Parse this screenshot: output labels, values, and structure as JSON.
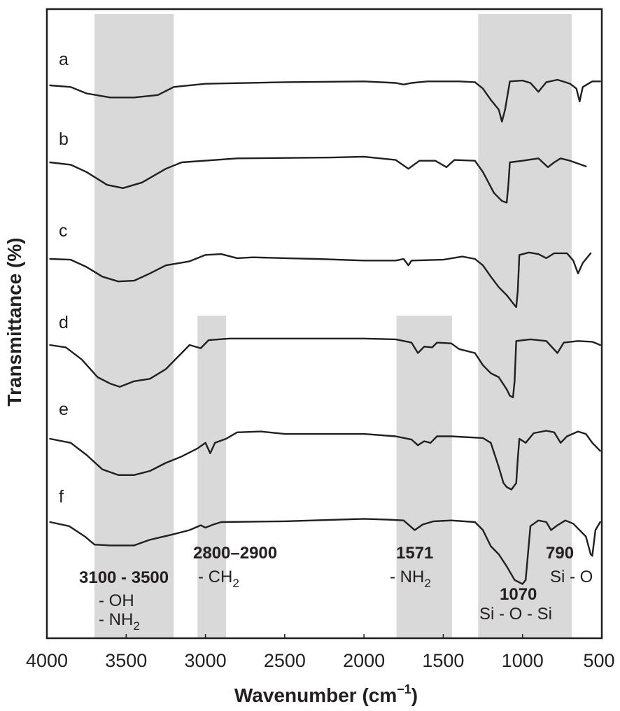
{
  "chart_data": {
    "type": "line",
    "title": "",
    "xlabel": "Wavenumber (cm⁻¹)",
    "xlabel_main": "Wavenumber (cm",
    "xlabel_sup": "−1",
    "xlabel_close": ")",
    "ylabel": "Transmittance (%)",
    "xlim": [
      4000,
      500
    ],
    "x_reversed": true,
    "y_ticks_shown": false,
    "grid": false,
    "x_ticks": [
      4000,
      3500,
      3000,
      2500,
      2000,
      1500,
      1000,
      500
    ],
    "x_tick_labels": [
      "4000",
      "3500",
      "3000",
      "2500",
      "2000",
      "1500",
      "1000",
      "500"
    ],
    "line_color": "#231f20",
    "band_color": "#d9d9d9",
    "bands": [
      {
        "name": "OH-NH2",
        "from": 3700,
        "to": 3200,
        "top_row": 0
      },
      {
        "name": "CH2",
        "from": 3050,
        "to": 2870,
        "top_row": 3
      },
      {
        "name": "NH2",
        "from": 1795,
        "to": 1445,
        "top_row": 3
      },
      {
        "name": "Si-O",
        "from": 1280,
        "to": 690,
        "top_row": 0
      }
    ],
    "annotations": [
      {
        "id": "oh",
        "bold": "3100 - 3500",
        "lines": [
          "- OH",
          "- NH₂"
        ]
      },
      {
        "id": "ch2",
        "bold": "2800–2900",
        "lines": [
          "- CH₂"
        ]
      },
      {
        "id": "nh2",
        "bold": "1571",
        "lines": [
          "- NH₂"
        ]
      },
      {
        "id": "sios",
        "bold": "1070",
        "lines": [
          "Si - O - Si"
        ]
      },
      {
        "id": "sio",
        "bold": "790",
        "lines": [
          "Si - O"
        ]
      }
    ],
    "annotation_text": {
      "oh_bold": "3100 - 3500",
      "oh_line1": "- OH",
      "oh_line2_main": "- NH",
      "oh_line2_sub": "2",
      "ch2_bold": "2800–2900",
      "ch2_main": "- CH",
      "ch2_sub": "2",
      "nh2_bold": "1571",
      "nh2_main": "- NH",
      "nh2_sub": "2",
      "sios_bold": "1070",
      "sios_line": "Si - O - Si",
      "sio_bold": "790",
      "sio_line": "Si - O"
    },
    "y_units_note": "relative transmittance offset; each trace stacked, values are relative dip depth (0 = baseline, negative = absorption, arbitrary units)",
    "series": [
      {
        "name": "a",
        "points": [
          [
            3980,
            0
          ],
          [
            3850,
            -2
          ],
          [
            3750,
            -10
          ],
          [
            3600,
            -15
          ],
          [
            3450,
            -15
          ],
          [
            3300,
            -12
          ],
          [
            3200,
            -2
          ],
          [
            3000,
            2
          ],
          [
            2500,
            4
          ],
          [
            2000,
            5
          ],
          [
            1800,
            3
          ],
          [
            1750,
            1
          ],
          [
            1700,
            3
          ],
          [
            1600,
            5
          ],
          [
            1400,
            5
          ],
          [
            1300,
            4
          ],
          [
            1250,
            -4
          ],
          [
            1200,
            -18
          ],
          [
            1150,
            -30
          ],
          [
            1130,
            -45
          ],
          [
            1110,
            -30
          ],
          [
            1080,
            5
          ],
          [
            1000,
            6
          ],
          [
            950,
            3
          ],
          [
            900,
            -8
          ],
          [
            850,
            4
          ],
          [
            780,
            7
          ],
          [
            730,
            4
          ],
          [
            700,
            2
          ],
          [
            660,
            -4
          ],
          [
            640,
            -20
          ],
          [
            620,
            -2
          ],
          [
            560,
            5
          ],
          [
            510,
            5
          ]
        ]
      },
      {
        "name": "b",
        "points": [
          [
            3980,
            0
          ],
          [
            3850,
            -3
          ],
          [
            3750,
            -12
          ],
          [
            3620,
            -28
          ],
          [
            3520,
            -32
          ],
          [
            3400,
            -25
          ],
          [
            3250,
            -8
          ],
          [
            3150,
            0
          ],
          [
            2800,
            5
          ],
          [
            2200,
            6
          ],
          [
            2000,
            7
          ],
          [
            1800,
            3
          ],
          [
            1720,
            -8
          ],
          [
            1650,
            2
          ],
          [
            1550,
            2
          ],
          [
            1480,
            -6
          ],
          [
            1430,
            3
          ],
          [
            1300,
            2
          ],
          [
            1250,
            -12
          ],
          [
            1180,
            -38
          ],
          [
            1130,
            -48
          ],
          [
            1100,
            -50
          ],
          [
            1090,
            -30
          ],
          [
            1080,
            0
          ],
          [
            1000,
            2
          ],
          [
            900,
            5
          ],
          [
            840,
            -6
          ],
          [
            800,
            0
          ],
          [
            760,
            5
          ],
          [
            700,
            2
          ],
          [
            600,
            -5
          ]
        ]
      },
      {
        "name": "c",
        "points": [
          [
            3980,
            0
          ],
          [
            3850,
            -1
          ],
          [
            3750,
            -10
          ],
          [
            3650,
            -22
          ],
          [
            3550,
            -28
          ],
          [
            3450,
            -27
          ],
          [
            3350,
            -18
          ],
          [
            3250,
            -8
          ],
          [
            3100,
            -3
          ],
          [
            3000,
            5
          ],
          [
            2900,
            6
          ],
          [
            2800,
            1
          ],
          [
            2700,
            2
          ],
          [
            2500,
            1
          ],
          [
            2300,
            0
          ],
          [
            2000,
            -2
          ],
          [
            1800,
            -2
          ],
          [
            1750,
            0
          ],
          [
            1720,
            -8
          ],
          [
            1700,
            -2
          ],
          [
            1500,
            -1
          ],
          [
            1380,
            3
          ],
          [
            1300,
            0
          ],
          [
            1250,
            -8
          ],
          [
            1200,
            -22
          ],
          [
            1150,
            -35
          ],
          [
            1100,
            -45
          ],
          [
            1060,
            -55
          ],
          [
            1040,
            -60
          ],
          [
            1030,
            -40
          ],
          [
            1020,
            5
          ],
          [
            960,
            8
          ],
          [
            900,
            6
          ],
          [
            850,
            1
          ],
          [
            800,
            7
          ],
          [
            720,
            7
          ],
          [
            680,
            -2
          ],
          [
            650,
            -18
          ],
          [
            620,
            -5
          ],
          [
            570,
            7
          ]
        ]
      },
      {
        "name": "d",
        "points": [
          [
            3980,
            0
          ],
          [
            3880,
            -3
          ],
          [
            3780,
            -18
          ],
          [
            3680,
            -40
          ],
          [
            3600,
            -48
          ],
          [
            3540,
            -52
          ],
          [
            3450,
            -45
          ],
          [
            3350,
            -42
          ],
          [
            3250,
            -30
          ],
          [
            3150,
            -10
          ],
          [
            3100,
            0
          ],
          [
            3030,
            -4
          ],
          [
            2980,
            6
          ],
          [
            2850,
            8
          ],
          [
            2500,
            8
          ],
          [
            2000,
            8
          ],
          [
            1800,
            7
          ],
          [
            1700,
            3
          ],
          [
            1660,
            -10
          ],
          [
            1620,
            -2
          ],
          [
            1570,
            -3
          ],
          [
            1540,
            3
          ],
          [
            1450,
            2
          ],
          [
            1400,
            -5
          ],
          [
            1300,
            -10
          ],
          [
            1250,
            -25
          ],
          [
            1200,
            -35
          ],
          [
            1150,
            -40
          ],
          [
            1100,
            -55
          ],
          [
            1080,
            -63
          ],
          [
            1060,
            -65
          ],
          [
            1050,
            -45
          ],
          [
            1040,
            5
          ],
          [
            950,
            7
          ],
          [
            850,
            5
          ],
          [
            780,
            -10
          ],
          [
            740,
            3
          ],
          [
            650,
            5
          ],
          [
            560,
            4
          ],
          [
            510,
            0
          ]
        ]
      },
      {
        "name": "e",
        "points": [
          [
            3980,
            0
          ],
          [
            3850,
            -5
          ],
          [
            3750,
            -20
          ],
          [
            3650,
            -38
          ],
          [
            3550,
            -45
          ],
          [
            3450,
            -45
          ],
          [
            3350,
            -40
          ],
          [
            3250,
            -30
          ],
          [
            3150,
            -22
          ],
          [
            3050,
            -12
          ],
          [
            3000,
            -5
          ],
          [
            2970,
            -18
          ],
          [
            2940,
            -5
          ],
          [
            2870,
            0
          ],
          [
            2800,
            8
          ],
          [
            2650,
            9
          ],
          [
            2500,
            6
          ],
          [
            2000,
            6
          ],
          [
            1800,
            3
          ],
          [
            1700,
            -1
          ],
          [
            1660,
            -8
          ],
          [
            1620,
            -3
          ],
          [
            1580,
            -5
          ],
          [
            1540,
            3
          ],
          [
            1450,
            3
          ],
          [
            1250,
            1
          ],
          [
            1200,
            -5
          ],
          [
            1150,
            -35
          ],
          [
            1120,
            -55
          ],
          [
            1100,
            -60
          ],
          [
            1070,
            -63
          ],
          [
            1040,
            -55
          ],
          [
            1030,
            -25
          ],
          [
            1020,
            0
          ],
          [
            980,
            -5
          ],
          [
            930,
            7
          ],
          [
            850,
            10
          ],
          [
            800,
            8
          ],
          [
            760,
            -5
          ],
          [
            720,
            3
          ],
          [
            650,
            9
          ],
          [
            600,
            6
          ],
          [
            560,
            -5
          ],
          [
            510,
            -15
          ]
        ]
      },
      {
        "name": "f",
        "points": [
          [
            3980,
            0
          ],
          [
            3860,
            -5
          ],
          [
            3760,
            -18
          ],
          [
            3700,
            -28
          ],
          [
            3600,
            -29
          ],
          [
            3450,
            -29
          ],
          [
            3350,
            -22
          ],
          [
            3200,
            -15
          ],
          [
            3100,
            -10
          ],
          [
            3030,
            -4
          ],
          [
            3000,
            -7
          ],
          [
            2950,
            -3
          ],
          [
            2900,
            0
          ],
          [
            2500,
            1
          ],
          [
            2000,
            4
          ],
          [
            1850,
            3
          ],
          [
            1750,
            2
          ],
          [
            1680,
            -10
          ],
          [
            1630,
            -3
          ],
          [
            1560,
            1
          ],
          [
            1450,
            2
          ],
          [
            1300,
            0
          ],
          [
            1250,
            -10
          ],
          [
            1200,
            -30
          ],
          [
            1150,
            -40
          ],
          [
            1100,
            -55
          ],
          [
            1050,
            -72
          ],
          [
            1000,
            -77
          ],
          [
            980,
            -72
          ],
          [
            950,
            -5
          ],
          [
            900,
            2
          ],
          [
            850,
            0
          ],
          [
            820,
            -10
          ],
          [
            780,
            -4
          ],
          [
            730,
            2
          ],
          [
            680,
            -2
          ],
          [
            600,
            -18
          ],
          [
            570,
            -40
          ],
          [
            560,
            -42
          ],
          [
            540,
            -10
          ],
          [
            510,
            0
          ]
        ]
      }
    ]
  }
}
